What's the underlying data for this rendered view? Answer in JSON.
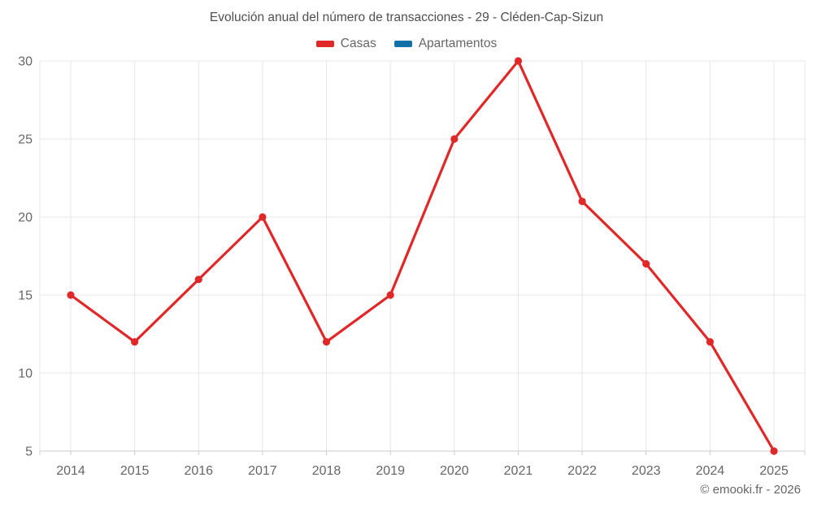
{
  "title": "Evolución anual del número de transacciones - 29 - Cléden-Cap-Sizun",
  "legend": {
    "items": [
      {
        "label": "Casas",
        "color": "#e02828"
      },
      {
        "label": "Apartamentos",
        "color": "#1170a5"
      }
    ]
  },
  "footer": {
    "credit": "© emooki.fr - 2026"
  },
  "chart_data": {
    "type": "line",
    "title": "Evolución anual del número de transacciones - 29 - Cléden-Cap-Sizun",
    "categories": [
      "2014",
      "2015",
      "2016",
      "2017",
      "2018",
      "2019",
      "2020",
      "2021",
      "2022",
      "2023",
      "2024",
      "2025"
    ],
    "series": [
      {
        "name": "Casas",
        "color": "#e02828",
        "values": [
          15,
          12,
          16,
          20,
          12,
          15,
          25,
          30,
          21,
          17,
          12,
          5
        ]
      },
      {
        "name": "Apartamentos",
        "color": "#1170a5",
        "values": []
      }
    ],
    "xlabel": "",
    "ylabel": "",
    "ylim": [
      5,
      30
    ],
    "yticks": [
      5,
      10,
      15,
      20,
      25,
      30
    ],
    "grid": true,
    "legend_position": "top",
    "styles": {
      "grid_color": "#e7e7e7",
      "axis_color": "#cccccc",
      "tick_label_color": "#666666",
      "title_color": "#4f4f4f",
      "background": "#ffffff"
    }
  }
}
